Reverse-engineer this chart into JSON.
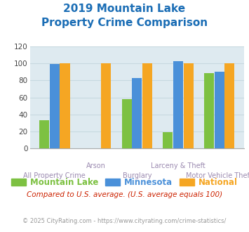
{
  "title_line1": "2019 Mountain Lake",
  "title_line2": "Property Crime Comparison",
  "categories": [
    "All Property Crime",
    "Arson",
    "Burglary",
    "Larceny & Theft",
    "Motor Vehicle Theft"
  ],
  "mountain_lake": [
    33,
    0,
    58,
    19,
    89
  ],
  "minnesota": [
    99,
    0,
    83,
    103,
    90
  ],
  "national": [
    100,
    100,
    100,
    100,
    100
  ],
  "color_mountain_lake": "#7dc142",
  "color_minnesota": "#4a90d9",
  "color_national": "#f5a623",
  "ylim": [
    0,
    120
  ],
  "yticks": [
    0,
    20,
    40,
    60,
    80,
    100,
    120
  ],
  "grid_color": "#c8d9e0",
  "bg_color": "#deeaf0",
  "title_color": "#1a6db5",
  "xlabel_color": "#9b8ab0",
  "footnote1": "Compared to U.S. average. (U.S. average equals 100)",
  "footnote2": "© 2025 CityRating.com - https://www.cityrating.com/crime-statistics/",
  "footnote1_color": "#cc2200",
  "footnote2_color": "#999999"
}
